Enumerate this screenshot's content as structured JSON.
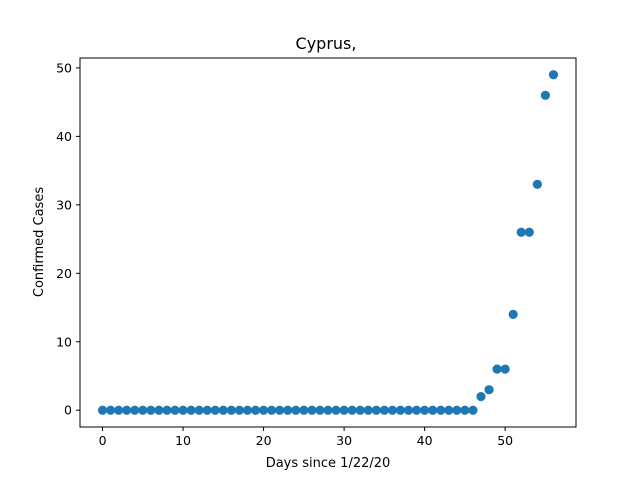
{
  "chart_data": {
    "type": "scatter",
    "title": "Cyprus,",
    "xlabel": "Days since 1/22/20",
    "ylabel": "Confirmed Cases",
    "xlim": [
      -2.8,
      58.8
    ],
    "ylim": [
      -2.45,
      51.45
    ],
    "xticks": [
      0,
      10,
      20,
      30,
      40,
      50
    ],
    "yticks": [
      0,
      10,
      20,
      30,
      40,
      50
    ],
    "grid": false,
    "legend": "none",
    "marker_color": "#1f77b4",
    "x": [
      0,
      1,
      2,
      3,
      4,
      5,
      6,
      7,
      8,
      9,
      10,
      11,
      12,
      13,
      14,
      15,
      16,
      17,
      18,
      19,
      20,
      21,
      22,
      23,
      24,
      25,
      26,
      27,
      28,
      29,
      30,
      31,
      32,
      33,
      34,
      35,
      36,
      37,
      38,
      39,
      40,
      41,
      42,
      43,
      44,
      45,
      46,
      47,
      48,
      49,
      50,
      51,
      52,
      53,
      54,
      55,
      56
    ],
    "y": [
      0,
      0,
      0,
      0,
      0,
      0,
      0,
      0,
      0,
      0,
      0,
      0,
      0,
      0,
      0,
      0,
      0,
      0,
      0,
      0,
      0,
      0,
      0,
      0,
      0,
      0,
      0,
      0,
      0,
      0,
      0,
      0,
      0,
      0,
      0,
      0,
      0,
      0,
      0,
      0,
      0,
      0,
      0,
      0,
      0,
      0,
      0,
      2,
      3,
      6,
      6,
      14,
      26,
      26,
      33,
      46,
      49
    ]
  }
}
